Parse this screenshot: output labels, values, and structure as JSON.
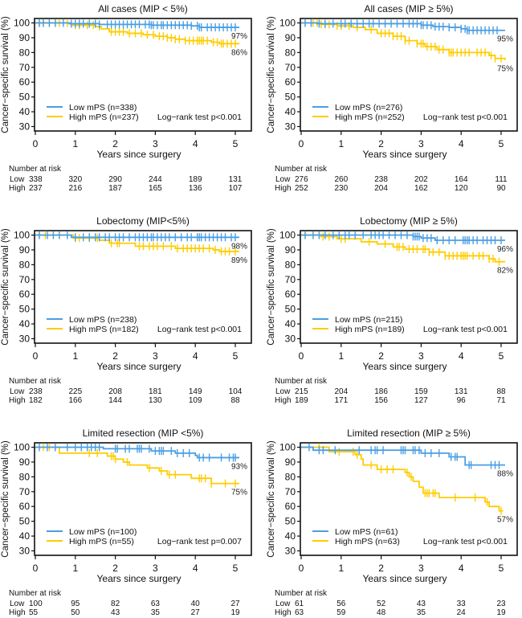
{
  "colors": {
    "low": "#4A9EE3",
    "high": "#FFCC00",
    "axis": "#111111"
  },
  "risk_header": "Number at risk",
  "risk_labels": {
    "low": "Low",
    "high": "High"
  },
  "chart_data": [
    {
      "type": "line",
      "subtype": "kaplan-meier",
      "title": "All cases (MIP < 5%)",
      "xlabel": "Years since surgery",
      "ylabel": "Cancer−specific survival (%)",
      "xlim": [
        0,
        5
      ],
      "ylim": [
        27,
        103
      ],
      "xticks": [
        0,
        1,
        2,
        3,
        4,
        5
      ],
      "yticks": [
        100,
        90,
        80,
        70,
        60,
        50,
        40,
        30
      ],
      "annotation": "Log−rank test p<0.001",
      "legend_position": "bottom-left",
      "series": [
        {
          "key": "low",
          "name": "Low mPS (n=338)",
          "end_label": "97%",
          "x": [
            0,
            0.85,
            1.6,
            2.9,
            3.9,
            4.1,
            5.1
          ],
          "y": [
            100,
            99.5,
            99,
            98.5,
            98,
            97,
            97
          ],
          "censor": [
            0.1,
            0.2,
            0.35,
            0.5,
            0.7,
            0.9,
            1.0,
            1.1,
            1.2,
            1.35,
            1.5,
            1.6,
            1.8,
            1.9,
            2.0,
            2.1,
            2.2,
            2.3,
            2.4,
            2.5,
            2.6,
            2.75,
            2.85,
            2.9,
            2.95,
            3.05,
            3.15,
            3.2,
            3.3,
            3.4,
            3.5,
            3.6,
            3.7,
            3.8,
            3.9,
            4.05,
            4.1,
            4.15,
            4.3,
            4.4,
            4.5,
            4.6,
            4.7,
            4.8,
            4.9,
            5.0
          ]
        },
        {
          "key": "high",
          "name": "High mPS (n=237)",
          "end_label": "86%",
          "x": [
            0,
            0.9,
            1.5,
            1.65,
            1.85,
            2.3,
            2.7,
            3.0,
            3.3,
            3.5,
            3.75,
            4.4,
            4.6,
            5.1
          ],
          "y": [
            100,
            98.5,
            97.5,
            96,
            94,
            93,
            92,
            91,
            90,
            89,
            88,
            87,
            86,
            86
          ],
          "censor": [
            0.1,
            0.2,
            0.35,
            0.5,
            0.6,
            0.8,
            1.0,
            1.1,
            1.3,
            1.45,
            1.6,
            1.9,
            2.0,
            2.1,
            2.2,
            2.35,
            2.5,
            2.65,
            2.8,
            2.95,
            3.1,
            3.2,
            3.3,
            3.4,
            3.5,
            3.6,
            3.75,
            3.85,
            3.95,
            4.05,
            4.1,
            4.15,
            4.2,
            4.3,
            4.45,
            4.55,
            4.65,
            4.7,
            4.8,
            4.9,
            5.0
          ]
        }
      ],
      "number_at_risk": {
        "low": [
          338,
          320,
          290,
          244,
          189,
          131
        ],
        "high": [
          237,
          216,
          187,
          165,
          136,
          107
        ]
      }
    },
    {
      "type": "line",
      "subtype": "kaplan-meier",
      "title": "All cases (MIP ≥ 5%)",
      "xlabel": "Years since surgery",
      "ylabel": "Cancer−specific survival (%)",
      "xlim": [
        0,
        5
      ],
      "ylim": [
        27,
        103
      ],
      "xticks": [
        0,
        1,
        2,
        3,
        4,
        5
      ],
      "yticks": [
        100,
        90,
        80,
        70,
        60,
        50,
        40,
        30
      ],
      "annotation": "Log−rank test p<0.001",
      "legend_position": "bottom-left",
      "series": [
        {
          "key": "low",
          "name": "Low mPS (n=276)",
          "end_label": "95%",
          "x": [
            0,
            0.4,
            2.7,
            3.0,
            3.3,
            3.7,
            4.0,
            4.15,
            5.1
          ],
          "y": [
            100,
            99.5,
            99.5,
            98.5,
            97.5,
            97,
            96,
            95,
            95
          ],
          "censor": [
            0.1,
            0.25,
            0.45,
            0.6,
            0.8,
            1.0,
            1.1,
            1.25,
            1.4,
            1.55,
            1.7,
            1.8,
            1.95,
            2.1,
            2.25,
            2.4,
            2.55,
            2.7,
            2.8,
            2.9,
            3.0,
            3.05,
            3.15,
            3.25,
            3.35,
            3.45,
            3.55,
            3.7,
            3.85,
            4.0,
            4.1,
            4.15,
            4.2,
            4.3,
            4.4,
            4.5,
            4.6,
            4.7,
            4.8,
            4.9
          ]
        },
        {
          "key": "high",
          "name": "High mPS (n=252)",
          "end_label": "75%",
          "x": [
            0,
            0.5,
            0.9,
            1.3,
            1.6,
            1.9,
            2.3,
            2.6,
            2.9,
            3.1,
            3.4,
            3.7,
            4.5,
            4.7,
            4.85,
            5.1
          ],
          "y": [
            100,
            99,
            98,
            97,
            95.5,
            93,
            91,
            88,
            86,
            84,
            82,
            80,
            80,
            78,
            76,
            75
          ],
          "censor": [
            0.1,
            0.3,
            0.4,
            0.5,
            0.6,
            0.7,
            0.9,
            1.0,
            1.2,
            1.4,
            1.75,
            2.0,
            2.1,
            2.2,
            2.3,
            2.4,
            2.5,
            2.6,
            2.7,
            2.9,
            3.0,
            3.05,
            3.15,
            3.25,
            3.35,
            3.45,
            3.55,
            3.7,
            3.75,
            3.8,
            3.9,
            4.0,
            4.1,
            4.2,
            4.4,
            4.5,
            4.6,
            4.75,
            4.85,
            5.0
          ]
        }
      ],
      "number_at_risk": {
        "low": [
          276,
          260,
          238,
          202,
          164,
          111
        ],
        "high": [
          252,
          230,
          204,
          162,
          120,
          90
        ]
      }
    },
    {
      "type": "line",
      "subtype": "kaplan-meier",
      "title": "Lobectomy (MIP<5%)",
      "xlabel": "Years since surgery",
      "ylabel": "Cancer−specific survival (%)",
      "xlim": [
        0,
        5
      ],
      "ylim": [
        27,
        103
      ],
      "xticks": [
        0,
        1,
        2,
        3,
        4,
        5
      ],
      "yticks": [
        100,
        90,
        80,
        70,
        60,
        50,
        40,
        30
      ],
      "annotation": "Log−rank test p<0.001",
      "legend_position": "bottom-left",
      "series": [
        {
          "key": "low",
          "name": "Low mPS (n=238)",
          "end_label": "98%",
          "x": [
            0,
            0.9,
            5.1
          ],
          "y": [
            100,
            98.5,
            98.5
          ],
          "censor": [
            0.1,
            0.3,
            0.45,
            0.6,
            0.8,
            1.0,
            1.2,
            1.35,
            1.5,
            1.6,
            1.75,
            1.85,
            2.0,
            2.1,
            2.2,
            2.35,
            2.5,
            2.6,
            2.7,
            2.8,
            2.9,
            2.95,
            3.05,
            3.15,
            3.25,
            3.35,
            3.5,
            3.65,
            3.8,
            3.9,
            4.05,
            4.1,
            4.15,
            4.25,
            4.35,
            4.45,
            4.55,
            4.65,
            4.75,
            4.9,
            5.0
          ]
        },
        {
          "key": "high",
          "name": "High mPS (n=182)",
          "end_label": "89%",
          "x": [
            0,
            0.95,
            1.6,
            1.85,
            2.5,
            3.5,
            4.45,
            4.6,
            5.1
          ],
          "y": [
            100,
            98,
            96.5,
            94.5,
            92.5,
            91,
            90,
            89,
            89
          ],
          "censor": [
            0.1,
            0.25,
            0.45,
            0.6,
            0.8,
            1.0,
            1.1,
            1.35,
            1.55,
            1.9,
            2.05,
            2.1,
            2.6,
            2.7,
            2.85,
            2.95,
            3.05,
            3.2,
            3.4,
            3.55,
            3.7,
            3.8,
            3.9,
            4.0,
            4.1,
            4.2,
            4.35,
            4.5,
            4.65,
            4.75,
            4.85,
            5.0
          ]
        }
      ],
      "number_at_risk": {
        "low": [
          238,
          225,
          208,
          181,
          149,
          104
        ],
        "high": [
          182,
          166,
          144,
          130,
          109,
          88
        ]
      }
    },
    {
      "type": "line",
      "subtype": "kaplan-meier",
      "title": "Lobectomy (MIP ≥ 5%)",
      "xlabel": "Years since surgery",
      "ylabel": "Cancer−specific survival (%)",
      "xlim": [
        0,
        5
      ],
      "ylim": [
        27,
        103
      ],
      "xticks": [
        0,
        1,
        2,
        3,
        4,
        5
      ],
      "yticks": [
        100,
        90,
        80,
        70,
        60,
        50,
        40,
        30
      ],
      "annotation": "Log−rank test p<0.001",
      "legend_position": "bottom-left",
      "series": [
        {
          "key": "low",
          "name": "Low mPS (n=215)",
          "end_label": "96%",
          "x": [
            0,
            2.8,
            3.0,
            3.35,
            5.1
          ],
          "y": [
            100,
            99,
            98,
            96.5,
            96.5
          ],
          "censor": [
            0.1,
            0.3,
            0.45,
            0.6,
            0.8,
            0.95,
            1.1,
            1.2,
            1.35,
            1.55,
            1.75,
            1.85,
            1.95,
            2.05,
            2.2,
            2.35,
            2.5,
            2.65,
            2.8,
            2.85,
            2.9,
            2.95,
            3.05,
            3.15,
            3.25,
            3.4,
            3.55,
            3.7,
            3.85,
            4.05,
            4.1,
            4.15,
            4.2,
            4.3,
            4.4,
            4.55,
            4.65,
            4.75,
            4.85,
            5.0
          ]
        },
        {
          "key": "high",
          "name": "High mPS (n=189)",
          "end_label": "82%",
          "x": [
            0,
            0.5,
            0.9,
            1.5,
            1.9,
            2.3,
            2.6,
            3.2,
            3.6,
            4.7,
            4.85,
            5.1
          ],
          "y": [
            100,
            99,
            97.5,
            95.5,
            94,
            92,
            90.5,
            88.5,
            86,
            84,
            82,
            82
          ],
          "censor": [
            0.1,
            0.3,
            0.45,
            0.55,
            0.7,
            1.0,
            1.1,
            1.7,
            2.1,
            2.4,
            2.45,
            2.55,
            2.7,
            2.8,
            2.9,
            3.05,
            3.1,
            3.2,
            3.3,
            3.45,
            3.6,
            3.7,
            3.8,
            3.9,
            4.0,
            4.05,
            4.1,
            4.15,
            4.3,
            4.45,
            4.55,
            4.7,
            4.8,
            4.95
          ]
        }
      ],
      "number_at_risk": {
        "low": [
          215,
          204,
          186,
          159,
          131,
          88
        ],
        "high": [
          189,
          171,
          156,
          127,
          96,
          71
        ]
      }
    },
    {
      "type": "line",
      "subtype": "kaplan-meier",
      "title": "Limited resection (MIP <5%)",
      "xlabel": "Years since surgery",
      "ylabel": "Cancer−specific survival (%)",
      "xlim": [
        0,
        5
      ],
      "ylim": [
        27,
        103
      ],
      "xticks": [
        0,
        1,
        2,
        3,
        4,
        5
      ],
      "yticks": [
        100,
        90,
        80,
        70,
        60,
        50,
        40,
        30
      ],
      "annotation": "Log−rank test p=0.007",
      "legend_position": "bottom-left",
      "series": [
        {
          "key": "low",
          "name": "Low mPS (n=100)",
          "end_label": "93%",
          "x": [
            0,
            1.7,
            2.9,
            3.5,
            4.0,
            4.05,
            5.1
          ],
          "y": [
            100,
            99,
            97.5,
            96,
            94.5,
            93,
            93
          ],
          "censor": [
            0.1,
            0.3,
            0.5,
            0.8,
            1.0,
            1.15,
            1.3,
            1.4,
            1.5,
            1.6,
            2.0,
            2.05,
            2.25,
            2.35,
            2.55,
            2.6,
            2.65,
            2.85,
            3.0,
            3.1,
            3.15,
            3.2,
            3.4,
            3.55,
            3.7,
            3.85,
            4.1,
            4.2,
            4.35,
            4.65,
            4.85,
            4.95,
            5.0
          ]
        },
        {
          "key": "high",
          "name": "High mPS (n=55)",
          "end_label": "75%",
          "x": [
            0,
            0.6,
            1.8,
            2.0,
            2.2,
            2.35,
            2.8,
            3.1,
            3.3,
            3.9,
            4.4,
            5.1
          ],
          "y": [
            100,
            96,
            94,
            92,
            90,
            88,
            86,
            84,
            81.5,
            79,
            75.5,
            75.5
          ],
          "censor": [
            0.2,
            0.35,
            0.5,
            1.35,
            1.55,
            1.9,
            1.95,
            2.0,
            2.3,
            2.85,
            3.15,
            3.35,
            3.5,
            4.1,
            4.15,
            4.25,
            4.4,
            4.75,
            5.0
          ]
        }
      ],
      "number_at_risk": {
        "low": [
          100,
          95,
          82,
          63,
          40,
          27
        ],
        "high": [
          55,
          50,
          43,
          35,
          27,
          19
        ]
      }
    },
    {
      "type": "line",
      "subtype": "kaplan-meier",
      "title": "Limited resection (MIP ≥ 5%)",
      "xlabel": "Years since surgery",
      "ylabel": "Cancer−specific survival (%)",
      "xlim": [
        0,
        5
      ],
      "ylim": [
        27,
        103
      ],
      "xticks": [
        0,
        1,
        2,
        3,
        4,
        5
      ],
      "yticks": [
        100,
        90,
        80,
        70,
        60,
        50,
        40,
        30
      ],
      "annotation": "Log−rank test p<0.001",
      "legend_position": "bottom-left",
      "series": [
        {
          "key": "low",
          "name": "Low mPS (n=61)",
          "end_label": "88%",
          "x": [
            0,
            0.3,
            3.0,
            3.7,
            4.1,
            5.1
          ],
          "y": [
            100,
            98,
            96,
            93.5,
            88,
            88
          ],
          "censor": [
            0.2,
            0.45,
            0.55,
            0.85,
            1.45,
            1.75,
            1.85,
            1.9,
            2.05,
            2.5,
            2.55,
            2.6,
            2.8,
            2.85,
            2.95,
            3.1,
            3.25,
            3.45,
            3.75,
            3.85,
            3.9,
            4.2,
            4.25,
            4.75,
            4.85,
            4.95
          ]
        },
        {
          "key": "high",
          "name": "High mPS (n=63)",
          "end_label": "57%",
          "x": [
            0,
            0.7,
            1.35,
            1.5,
            1.55,
            1.9,
            2.6,
            2.7,
            2.8,
            2.95,
            3.05,
            3.45,
            4.6,
            4.7,
            4.95,
            5.05
          ],
          "y": [
            100,
            97,
            95,
            92,
            88,
            85,
            83,
            80,
            77,
            73,
            69,
            66,
            63,
            60,
            57,
            57
          ],
          "censor": [
            0.45,
            0.95,
            1.3,
            1.4,
            1.75,
            2.0,
            2.15,
            2.3,
            2.65,
            2.75,
            3.1,
            3.15,
            3.2,
            3.3,
            3.35,
            3.85,
            4.35,
            4.65,
            5.0
          ]
        }
      ],
      "number_at_risk": {
        "low": [
          61,
          56,
          52,
          43,
          33,
          23
        ],
        "high": [
          63,
          59,
          48,
          35,
          24,
          19
        ]
      }
    }
  ]
}
